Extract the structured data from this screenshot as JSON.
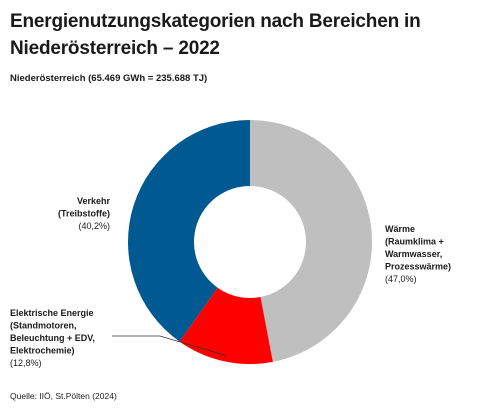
{
  "title": "Energienutzungskategorien nach Bereichen in Niederösterreich – 2022",
  "subtitle": "Niederösterreich (65.469 GWh = 235.688 TJ)",
  "source": "Quelle: IIÖ, St.Pölten (2024)",
  "colors": {
    "waerme": "#bfbfbf",
    "elektrische_energie": "#ff0000",
    "verkehr": "#005a91"
  },
  "chart_data": {
    "type": "pie",
    "donut": true,
    "title": "Energienutzungskategorien nach Bereichen in Niederösterreich – 2022",
    "categories": [
      "Wärme",
      "Elektrische Energie",
      "Verkehr"
    ],
    "values": [
      47.0,
      12.8,
      40.2
    ],
    "unit": "%",
    "labels": [
      {
        "lines": [
          "Wärme",
          "(Raumklima +",
          "Warmwasser,",
          "Prozesswärme)"
        ],
        "pct": "(47,0%)"
      },
      {
        "lines": [
          "Elektrische Energie",
          "(Standmotoren,",
          "Beleuchtung + EDV,",
          "Elektrochemie)"
        ],
        "pct": "(12,8%)"
      },
      {
        "lines": [
          "Verkehr",
          "(Treibstoffe)"
        ],
        "pct": "(40,2%)"
      }
    ]
  }
}
